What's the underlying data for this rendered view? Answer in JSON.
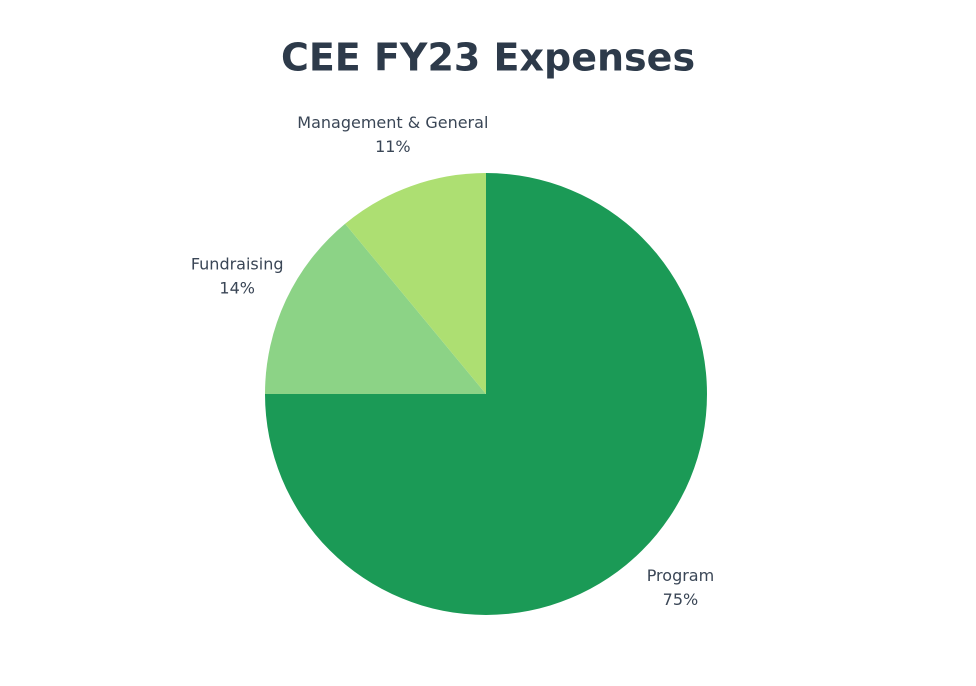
{
  "chart_data": {
    "type": "pie",
    "title": "CEE FY23 Expenses",
    "categories": [
      "Program",
      "Fundraising",
      "Management & General"
    ],
    "values": [
      75,
      14,
      11
    ],
    "value_labels": [
      "75%",
      "14%",
      "11%"
    ],
    "colors": [
      "#1b9a56",
      "#8cd386",
      "#addf72"
    ]
  }
}
